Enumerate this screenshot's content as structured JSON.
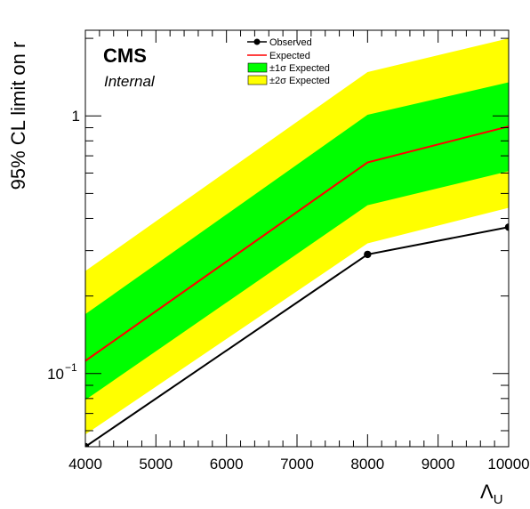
{
  "chart_data": {
    "type": "line",
    "x": [
      4000,
      8000,
      10000
    ],
    "series": [
      {
        "name": "Observed",
        "values": [
          0.052,
          0.29,
          0.37
        ],
        "color": "#000000",
        "marker": "circle"
      },
      {
        "name": "Expected",
        "values": [
          0.112,
          0.66,
          0.91
        ],
        "color": "#ff0000"
      }
    ],
    "bands": [
      {
        "name": "±2σ Expected",
        "low": [
          0.058,
          0.32,
          0.44
        ],
        "high": [
          0.25,
          1.48,
          2.0
        ],
        "color": "#ffff00"
      },
      {
        "name": "±1σ Expected",
        "low": [
          0.079,
          0.45,
          0.61
        ],
        "high": [
          0.17,
          1.01,
          1.35
        ],
        "color": "#00ff00"
      }
    ],
    "xlabel": "Λ",
    "xlabel_sub": "U",
    "ylabel": "95% CL limit on r",
    "xlim": [
      4000,
      10000
    ],
    "ylim": [
      0.052,
      2.15
    ],
    "yscale": "log",
    "xticks": [
      "4000",
      "5000",
      "6000",
      "7000",
      "8000",
      "9000",
      "10000"
    ],
    "yticks": [
      {
        "value": 1,
        "label": "1"
      },
      {
        "value": 0.1,
        "label_base": "10",
        "label_exp": "−1"
      }
    ],
    "legend_position": "top-center",
    "experiment": "CMS",
    "status": "Internal"
  }
}
